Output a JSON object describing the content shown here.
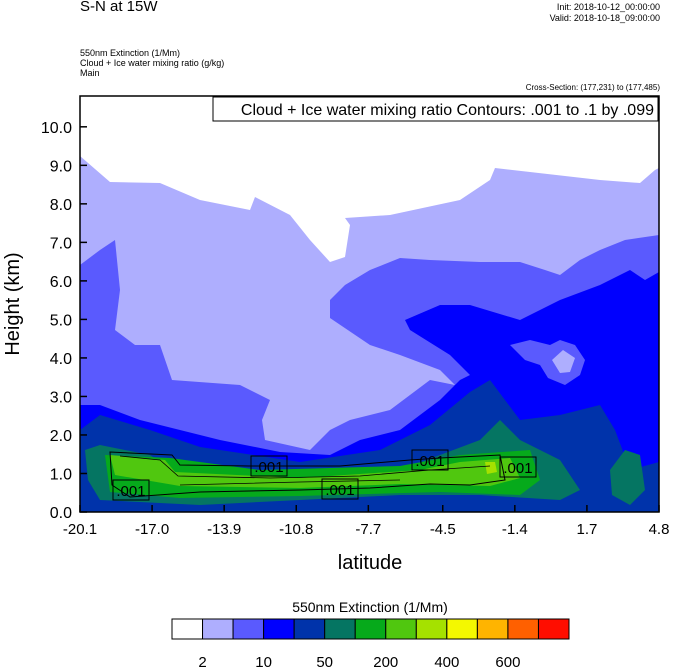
{
  "header": {
    "title": "S-N at 15W",
    "init": "Init: 2018-10-12_00:00:00",
    "valid": "Valid: 2018-10-18_09:00:00",
    "field1": "550nm Extinction   (1/Mm)",
    "field2": "Cloud + Ice water mixing ratio   (g/kg)",
    "field3": "Main",
    "cross_section": "Cross-Section: (177,231) to (177,485)"
  },
  "chart_data": {
    "type": "contour",
    "contour_info": "Cloud + Ice water mixing ratio Contours: .001 to .1 by .099",
    "xlabel": "latitude",
    "ylabel": "Height (km)",
    "xlim": [
      -20.1,
      4.8
    ],
    "ylim": [
      0,
      10.8
    ],
    "x_ticks": [
      "-20.1",
      "-17.0",
      "-13.9",
      "-10.8",
      "-7.7",
      "-4.5",
      "-1.4",
      "1.7",
      "4.8"
    ],
    "y_ticks": [
      "0.0",
      "1.0",
      "2.0",
      "3.0",
      "4.0",
      "5.0",
      "6.0",
      "7.0",
      "8.0",
      "9.0",
      "10.0"
    ],
    "contour_labels": [
      ".001",
      ".001",
      ".001",
      ".001",
      ".001"
    ],
    "colorbar": {
      "title": "550nm Extinction  (1/Mm)",
      "colors": [
        "#ffffff",
        "#aeaefe",
        "#5a5afe",
        "#0000fe",
        "#0033aa",
        "#057562",
        "#06aa1b",
        "#50c70f",
        "#a5e100",
        "#f4f800",
        "#ffb400",
        "#ff6000",
        "#ff0d00"
      ],
      "labels": [
        "2",
        "10",
        "50",
        "200",
        "400",
        "600"
      ]
    }
  }
}
